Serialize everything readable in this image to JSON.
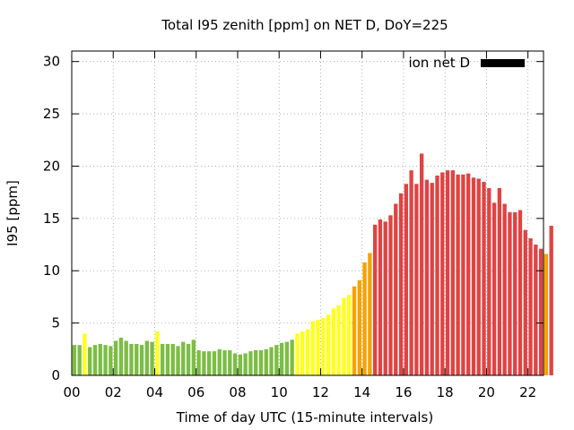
{
  "chart_data": {
    "type": "bar",
    "title": "Total I95 zenith [ppm] on NET D, DoY=225",
    "xlabel": "Time of day UTC (15-minute intervals)",
    "ylabel": "I95 [ppm]",
    "xlim": [
      0,
      22.75
    ],
    "ylim": [
      0,
      31
    ],
    "x_ticks": [
      "00",
      "02",
      "04",
      "06",
      "08",
      "10",
      "12",
      "14",
      "16",
      "18",
      "20",
      "22"
    ],
    "y_ticks": [
      "0",
      "5",
      "10",
      "15",
      "20",
      "25",
      "30"
    ],
    "grid": true,
    "legend": {
      "label": "ion net D",
      "color": "#000000",
      "position": "top-right"
    },
    "colors": {
      "green": "#7cbd44",
      "yellow": "#ffff1a",
      "orange": "#f5a300",
      "red": "#e04343"
    },
    "interval_hours": 0.25,
    "values": [
      2.9,
      2.9,
      4.0,
      2.7,
      2.9,
      3.0,
      2.9,
      2.8,
      3.3,
      3.6,
      3.3,
      3.0,
      3.0,
      2.9,
      3.3,
      3.2,
      4.2,
      3.0,
      3.0,
      3.0,
      2.8,
      3.2,
      3.0,
      3.4,
      2.4,
      2.3,
      2.3,
      2.3,
      2.5,
      2.4,
      2.4,
      2.1,
      2.0,
      2.1,
      2.3,
      2.4,
      2.4,
      2.5,
      2.7,
      2.9,
      3.1,
      3.2,
      3.4,
      4.0,
      4.2,
      4.4,
      5.2,
      5.3,
      5.5,
      5.8,
      6.4,
      6.7,
      7.4,
      7.7,
      8.5,
      9.1,
      10.8,
      11.7,
      14.4,
      14.9,
      14.7,
      15.3,
      16.4,
      17.4,
      18.3,
      19.6,
      18.3,
      21.2,
      18.7,
      18.4,
      19.1,
      19.4,
      19.6,
      19.6,
      19.2,
      19.2,
      19.3,
      18.9,
      18.8,
      18.5,
      17.9,
      16.5,
      17.9,
      16.4,
      15.6,
      15.6,
      15.8,
      13.9,
      13.1,
      12.5,
      12.1,
      11.6,
      14.3
    ],
    "bar_colors": [
      "green",
      "green",
      "yellow",
      "green",
      "green",
      "green",
      "green",
      "green",
      "green",
      "green",
      "green",
      "green",
      "green",
      "green",
      "green",
      "green",
      "yellow",
      "green",
      "green",
      "green",
      "green",
      "green",
      "green",
      "green",
      "green",
      "green",
      "green",
      "green",
      "green",
      "green",
      "green",
      "green",
      "green",
      "green",
      "green",
      "green",
      "green",
      "green",
      "green",
      "green",
      "green",
      "green",
      "green",
      "yellow",
      "yellow",
      "yellow",
      "yellow",
      "yellow",
      "yellow",
      "yellow",
      "yellow",
      "yellow",
      "yellow",
      "yellow",
      "orange",
      "orange",
      "orange",
      "orange",
      "red",
      "red",
      "red",
      "red",
      "red",
      "red",
      "red",
      "red",
      "red",
      "red",
      "red",
      "red",
      "red",
      "red",
      "red",
      "red",
      "red",
      "red",
      "red",
      "red",
      "red",
      "red",
      "red",
      "red",
      "red",
      "red",
      "red",
      "red",
      "red",
      "red",
      "red",
      "red",
      "red",
      "orange",
      "red"
    ]
  }
}
